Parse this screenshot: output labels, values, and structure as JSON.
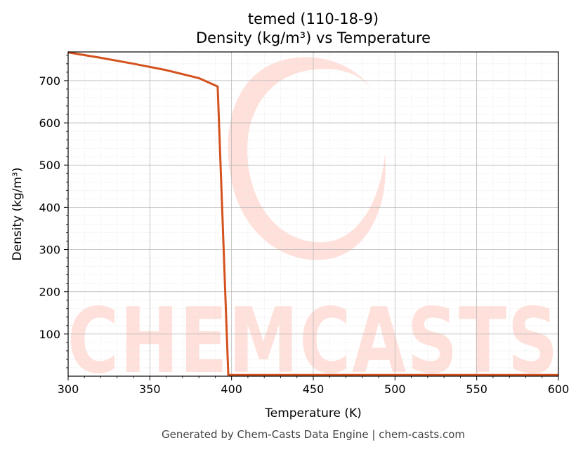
{
  "chart_data": {
    "type": "line",
    "title": "temed (110-18-9)",
    "subtitle": "Density (kg/m³) vs Temperature",
    "xlabel": "Temperature (K)",
    "ylabel": "Density (kg/m³)",
    "xlim": [
      300,
      600
    ],
    "ylim": [
      0,
      768
    ],
    "xticks": [
      300,
      350,
      400,
      450,
      500,
      550,
      600
    ],
    "yticks": [
      100,
      200,
      300,
      400,
      500,
      600,
      700
    ],
    "grid": true,
    "line_color": "#d4521e",
    "series": [
      {
        "x": [
          300,
          320,
          340,
          360,
          380,
          391.5,
          398,
          400,
          450,
          500,
          550,
          600
        ],
        "y": [
          767,
          754,
          740,
          725,
          706,
          686,
          3,
          3,
          3,
          3,
          3,
          3
        ]
      }
    ]
  },
  "watermark": {
    "text": "CHEMCASTS",
    "color": "#ffe0da"
  },
  "footer": "Generated by Chem-Casts Data Engine | chem-casts.com"
}
